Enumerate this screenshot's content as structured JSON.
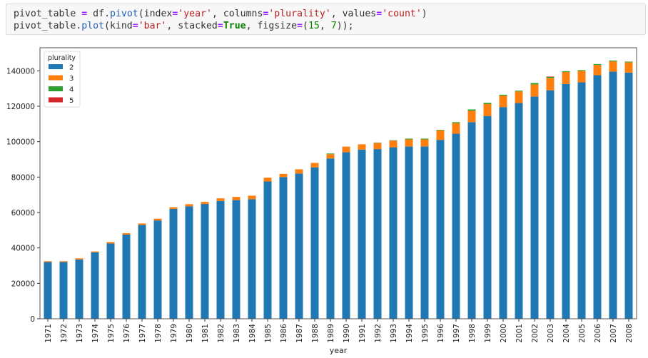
{
  "code_cell": {
    "lines": [
      [
        {
          "t": "pivot_table ",
          "c": ""
        },
        {
          "t": "=",
          "c": "op"
        },
        {
          "t": " df.",
          "c": ""
        },
        {
          "t": "pivot",
          "c": "fn"
        },
        {
          "t": "(index",
          "c": ""
        },
        {
          "t": "=",
          "c": "op"
        },
        {
          "t": "'year'",
          "c": "str"
        },
        {
          "t": ", columns",
          "c": ""
        },
        {
          "t": "=",
          "c": "op"
        },
        {
          "t": "'plurality'",
          "c": "str"
        },
        {
          "t": ", values",
          "c": ""
        },
        {
          "t": "=",
          "c": "op"
        },
        {
          "t": "'count'",
          "c": "str"
        },
        {
          "t": ")",
          "c": ""
        }
      ],
      [
        {
          "t": "pivot_table.",
          "c": ""
        },
        {
          "t": "plot",
          "c": "fn"
        },
        {
          "t": "(kind",
          "c": ""
        },
        {
          "t": "=",
          "c": "op"
        },
        {
          "t": "'bar'",
          "c": "str"
        },
        {
          "t": ", stacked",
          "c": ""
        },
        {
          "t": "=",
          "c": "op"
        },
        {
          "t": "True",
          "c": "kw"
        },
        {
          "t": ", figsize",
          "c": ""
        },
        {
          "t": "=",
          "c": "op"
        },
        {
          "t": "(",
          "c": ""
        },
        {
          "t": "15",
          "c": "num"
        },
        {
          "t": ", ",
          "c": ""
        },
        {
          "t": "7",
          "c": "num"
        },
        {
          "t": "));",
          "c": ""
        }
      ]
    ]
  },
  "chart_data": {
    "type": "bar",
    "stacked": true,
    "xlabel": "year",
    "ylabel": "",
    "ylim": [
      0,
      153000
    ],
    "yticks": [
      0,
      20000,
      40000,
      60000,
      80000,
      100000,
      120000,
      140000
    ],
    "legend": {
      "title": "plurality",
      "placement": "top-left"
    },
    "categories": [
      "1971",
      "1972",
      "1973",
      "1974",
      "1975",
      "1976",
      "1977",
      "1978",
      "1979",
      "1980",
      "1981",
      "1982",
      "1983",
      "1984",
      "1985",
      "1986",
      "1987",
      "1988",
      "1989",
      "1990",
      "1991",
      "1992",
      "1993",
      "1994",
      "1995",
      "1996",
      "1997",
      "1998",
      "1999",
      "2000",
      "2001",
      "2002",
      "2003",
      "2004",
      "2005",
      "2006",
      "2007",
      "2008"
    ],
    "series": [
      {
        "name": "2",
        "color": "#1f77b4",
        "values": [
          32000,
          32000,
          33500,
          37500,
          42500,
          47500,
          53000,
          55500,
          62000,
          63500,
          64800,
          66500,
          67000,
          67500,
          77500,
          80000,
          82000,
          85500,
          90500,
          94000,
          95500,
          95800,
          96800,
          97300,
          97300,
          101000,
          104500,
          111000,
          114500,
          119500,
          121800,
          125500,
          129000,
          132500,
          133500,
          137500,
          139500,
          139000
        ]
      },
      {
        "name": "3",
        "color": "#ff7f0e",
        "values": [
          500,
          500,
          600,
          500,
          800,
          800,
          800,
          1000,
          1000,
          1200,
          1200,
          1500,
          1800,
          2000,
          2200,
          1800,
          2400,
          2500,
          2400,
          3200,
          3000,
          3500,
          3800,
          4000,
          4000,
          5400,
          6000,
          6500,
          6800,
          6500,
          6500,
          6800,
          7000,
          6800,
          6500,
          5800,
          5800,
          5800
        ]
      },
      {
        "name": "4",
        "color": "#2ca02c",
        "values": [
          0,
          0,
          0,
          0,
          0,
          0,
          0,
          0,
          0,
          0,
          0,
          0,
          0,
          0,
          0,
          0,
          0,
          0,
          400,
          0,
          0,
          200,
          200,
          400,
          400,
          300,
          500,
          700,
          700,
          500,
          500,
          800,
          600,
          500,
          400,
          500,
          500,
          400
        ]
      },
      {
        "name": "5",
        "color": "#d62728",
        "values": [
          0,
          0,
          0,
          0,
          0,
          0,
          0,
          0,
          0,
          0,
          0,
          0,
          0,
          0,
          0,
          0,
          0,
          0,
          0,
          0,
          0,
          0,
          0,
          0,
          0,
          0,
          0,
          0,
          0,
          0,
          0,
          0,
          200,
          0,
          0,
          0,
          0,
          0
        ]
      }
    ]
  }
}
